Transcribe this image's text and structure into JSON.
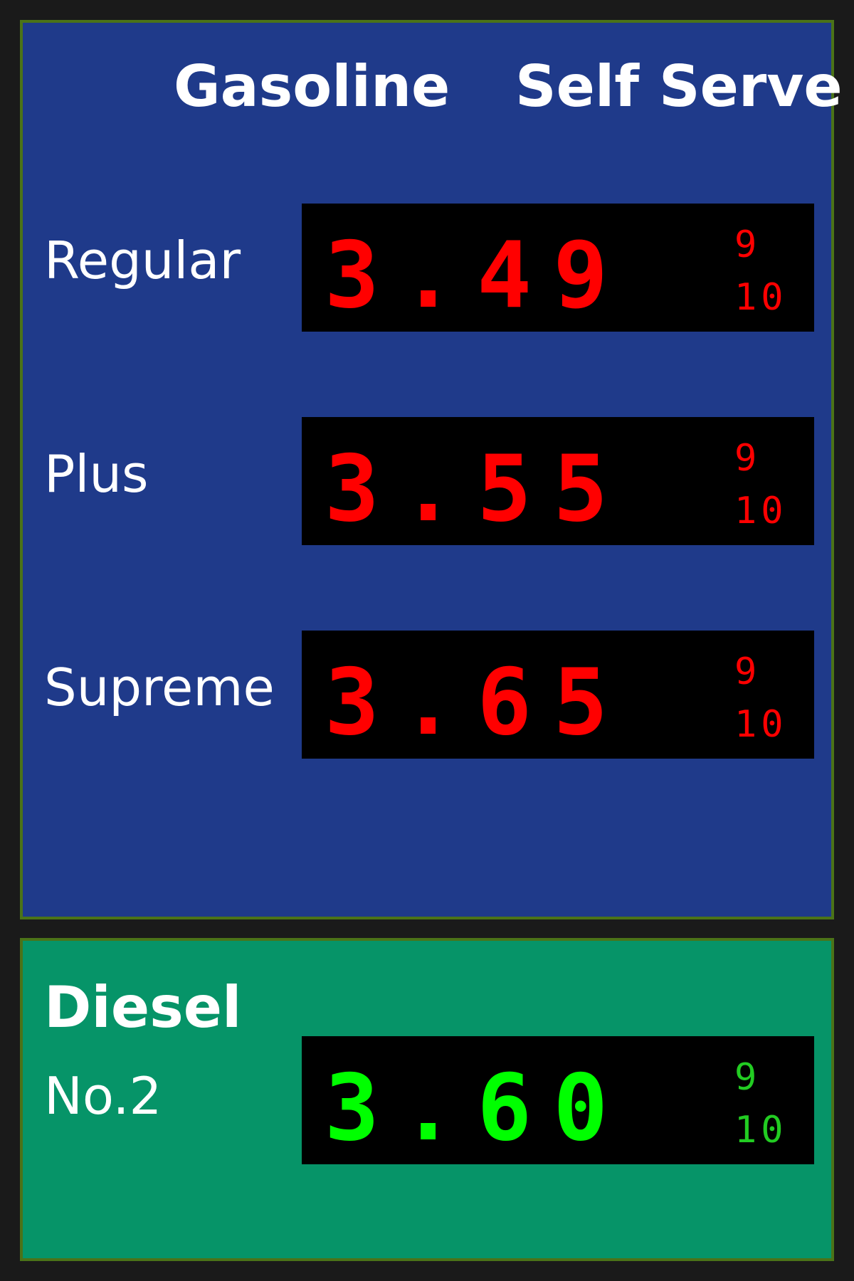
{
  "gasoline": {
    "title": "Gasoline",
    "subtitle": "Self Serve",
    "colors": {
      "panel": "#1f3a8a",
      "digits": "#ff0000"
    },
    "grades": [
      {
        "name": "Regular",
        "price": "3.49",
        "fraction_num": "9",
        "fraction_den": "10"
      },
      {
        "name": "Plus",
        "price": "3.55",
        "fraction_num": "9",
        "fraction_den": "10"
      },
      {
        "name": "Supreme",
        "price": "3.65",
        "fraction_num": "9",
        "fraction_den": "10"
      }
    ]
  },
  "diesel": {
    "title": "Diesel",
    "grade": "No.2",
    "price": "3.60",
    "fraction_num": "9",
    "fraction_den": "10",
    "colors": {
      "panel": "#069468",
      "digits": "#00ff00"
    }
  }
}
